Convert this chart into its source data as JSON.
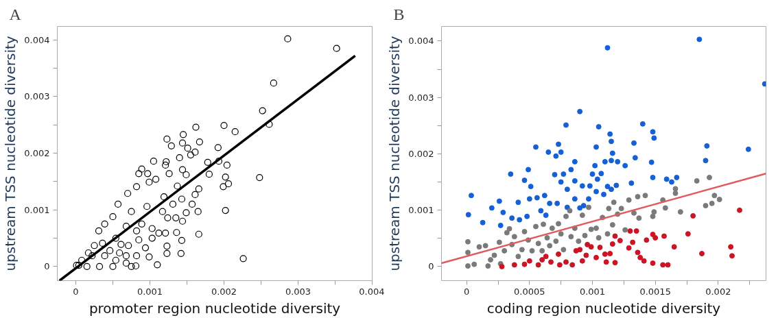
{
  "chart_data": [
    {
      "type": "scatter",
      "title": "A",
      "xlabel": "promoter region nucleotide diversity",
      "ylabel": "upstream TSS nucleotide diversity",
      "xlim": [
        -0.00025,
        0.004
      ],
      "ylim": [
        -0.00025,
        0.00424
      ],
      "xticks": [
        0,
        {
          "value": 0.0005,
          "label": null
        },
        0.001,
        {
          "value": 0.0015,
          "label": null
        },
        0.002,
        {
          "value": 0.0025,
          "label": null
        },
        0.003,
        {
          "value": 0.0035,
          "label": null
        },
        0.004
      ],
      "yticks": [
        0,
        {
          "value": 0.0005,
          "label": null
        },
        0.001,
        {
          "value": 0.0015,
          "label": null
        },
        0.002,
        {
          "value": 0.0025,
          "label": null
        },
        0.003,
        {
          "value": 0.0035,
          "label": null
        },
        0.004
      ],
      "series": [
        {
          "marker": "circle",
          "color": "#000000",
          "x": [
            0.00286,
            0.00352,
            0.00267,
            0.00252,
            0.00261,
            0.00162,
            0.002,
            0.00215,
            0.00145,
            0.00123,
            0.00129,
            0.00144,
            0.00167,
            0.00151,
            0.00192,
            0.00161,
            0.00155,
            0.00105,
            0.0014,
            0.00122,
            0.00178,
            0.00193,
            0.00204,
            0.00089,
            0.00085,
            0.00097,
            0.00121,
            0.00144,
            0.00149,
            0.00126,
            0.0018,
            0.00202,
            0.00248,
            0.00206,
            0.00199,
            0.00108,
            0.00099,
            0.00082,
            0.00166,
            0.00137,
            0.00161,
            0.0007,
            0.00119,
            0.00143,
            0.00131,
            0.00157,
            0.00202,
            0.00165,
            0.00149,
            0.00117,
            0.00135,
            0.00124,
            0.00144,
            0.00057,
            0.0005,
            0.00075,
            0.00096,
            0.00089,
            0.00103,
            0.00166,
            0.00112,
            0.00121,
            0.00136,
            0.00143,
            0.00039,
            0.00031,
            0.00068,
            0.00082,
            0.00054,
            0.00094,
            0.00123,
            0.00123,
            0.00142,
            0.00226,
            0.00099,
            0.0011,
            0.00081,
            0.00068,
            0.0005,
            0.00032,
            0.00015,
            4e-05,
            1e-05,
            8e-05,
            0.00017,
            0.00025,
            0.00022,
            0.00036,
            0.00039,
            0.00046,
            0.00059,
            0.00061,
            0.00071,
            0.00085,
            0.00103,
            0.00082,
            0.00054,
            0.00068,
            0.00075
          ],
          "values": [
            0.00402,
            0.00385,
            0.00324,
            0.00275,
            0.00251,
            0.00246,
            0.00249,
            0.00238,
            0.00233,
            0.00225,
            0.00213,
            0.00218,
            0.0022,
            0.00209,
            0.0021,
            0.00202,
            0.00197,
            0.00186,
            0.00192,
            0.00185,
            0.00184,
            0.00186,
            0.00179,
            0.00172,
            0.00164,
            0.00164,
            0.00179,
            0.00171,
            0.00162,
            0.00164,
            0.00163,
            0.00158,
            0.00157,
            0.00146,
            0.00141,
            0.00154,
            0.00149,
            0.00141,
            0.00137,
            0.00142,
            0.00127,
            0.00129,
            0.00123,
            0.00119,
            0.0011,
            0.0011,
            0.00099,
            0.00097,
            0.00095,
            0.00097,
            0.00086,
            0.00086,
            0.0008,
            0.0011,
            0.00088,
            0.00097,
            0.00106,
            0.00075,
            0.00067,
            0.00057,
            0.00059,
            0.00059,
            0.0006,
            0.00046,
            0.00075,
            0.00063,
            0.00071,
            0.00063,
            0.0005,
            0.00033,
            0.00036,
            0.00023,
            0.00023,
            0.00014,
            0.00017,
            3e-05,
            1e-05,
            6e-05,
            0.0,
            0.0,
            0.0,
            2e-05,
            2e-05,
            0.00011,
            0.00024,
            0.00037,
            0.00019,
            0.00041,
            0.00019,
            0.00028,
            0.00024,
            0.00039,
            0.00037,
            0.00047,
            0.0005,
            0.00019,
            0.00011,
            0.00019,
            0.0
          ]
        },
        {
          "type": "line",
          "marker": "none",
          "color": "#000000",
          "x": [
            -0.00022,
            0.00377
          ],
          "values": [
            -0.00025,
            0.00372
          ]
        }
      ]
    },
    {
      "type": "scatter",
      "title": "B",
      "xlabel": "coding region nucleotide diversity",
      "ylabel": "upstream TSS nucleotide diversity",
      "xlim": [
        -0.0002,
        0.00238
      ],
      "ylim": [
        -0.00025,
        0.00426
      ],
      "xticks": [
        0,
        {
          "value": 0.00025,
          "label": null
        },
        0.0005,
        {
          "value": 0.00075,
          "label": null
        },
        0.001,
        {
          "value": 0.00125,
          "label": null
        },
        0.0015,
        {
          "value": 0.00175,
          "label": null
        },
        0.002,
        {
          "value": 0.00225,
          "label": null
        }
      ],
      "yticks": [
        0,
        {
          "value": 0.0005,
          "label": null
        },
        0.001,
        {
          "value": 0.0015,
          "label": null
        },
        0.002,
        {
          "value": 0.0025,
          "label": null
        },
        0.003,
        {
          "value": 0.0035,
          "label": null
        },
        0.004
      ],
      "series": [
        {
          "marker": "circle",
          "color": "#1560d4",
          "x": [
            1.4e-05,
            3.7e-05,
            0.000128,
            0.0002,
            0.00026,
            0.00027,
            0.00029,
            0.00035,
            0.00036,
            0.00041,
            0.00042,
            0.00046,
            0.00049,
            0.00051,
            0.0005,
            0.00048,
            0.00055,
            0.00056,
            0.00059,
            0.00062,
            0.00063,
            0.00065,
            0.00066,
            0.0007,
            0.00071,
            0.00073,
            0.00075,
            0.00075,
            0.00072,
            0.00077,
            0.00079,
            0.0008,
            0.0008,
            0.00083,
            0.00086,
            0.00086,
            0.00086,
            0.0009,
            0.00092,
            0.0009,
            0.00093,
            0.00097,
            0.00098,
            0.001,
            0.00102,
            0.00103,
            0.00103,
            0.00105,
            0.00104,
            0.00107,
            0.00109,
            0.0011,
            0.00112,
            0.00112,
            0.00114,
            0.00115,
            0.00115,
            0.00115,
            0.00116,
            0.00119,
            0.0012,
            0.00126,
            0.00131,
            0.00133,
            0.00134,
            0.0014,
            0.00147,
            0.00148,
            0.00149,
            0.00148,
            0.00159,
            0.00163,
            0.00167,
            0.00185,
            0.0019,
            0.00191,
            0.00224,
            0.00237
          ],
          "values": [
            0.00092,
            0.00126,
            0.00078,
            0.00104,
            0.00116,
            0.00073,
            0.00096,
            0.00164,
            0.00086,
            0.00114,
            0.00083,
            0.00153,
            0.00172,
            0.00142,
            0.0012,
            0.00089,
            0.00212,
            0.00122,
            0.00099,
            0.00126,
            0.00091,
            0.00203,
            0.00112,
            0.00163,
            0.00196,
            0.00217,
            0.00203,
            0.0015,
            0.00112,
            0.00164,
            0.00251,
            0.00137,
            0.00105,
            0.00172,
            0.00186,
            0.00152,
            0.0012,
            0.00275,
            0.00143,
            0.00104,
            0.00108,
            0.0012,
            0.00143,
            0.00164,
            0.00179,
            0.00212,
            0.00133,
            0.00248,
            0.00155,
            0.00165,
            0.00128,
            0.00186,
            0.00388,
            0.00142,
            0.00235,
            0.00222,
            0.00137,
            0.00188,
            0.00201,
            0.00144,
            0.00186,
            0.00179,
            0.00148,
            0.00219,
            0.00193,
            0.00253,
            0.00185,
            0.00239,
            0.00228,
            0.00158,
            0.00155,
            0.0015,
            0.00158,
            0.00403,
            0.00188,
            0.00214,
            0.00208,
            0.00324
          ]
        },
        {
          "marker": "circle",
          "color": "#7a7a7a",
          "x": [
            1e-05,
            1e-05,
            1e-05,
            6e-05,
            0.0001,
            0.00015,
            0.00017,
            0.00019,
            0.00022,
            0.00026,
            0.00027,
            0.0003,
            0.00032,
            0.00034,
            0.00036,
            0.00038,
            0.00041,
            0.00044,
            0.00046,
            0.00049,
            0.00052,
            0.00055,
            0.00057,
            0.0006,
            0.00061,
            0.00064,
            0.00066,
            0.00068,
            0.00071,
            0.00073,
            0.00075,
            0.00077,
            0.00079,
            0.00082,
            0.00083,
            0.00086,
            0.00089,
            0.00092,
            0.00094,
            0.00097,
            0.00099,
            0.00103,
            0.00105,
            0.00108,
            0.00112,
            0.00113,
            0.00116,
            0.00117,
            0.0012,
            0.00123,
            0.00126,
            0.00129,
            0.00133,
            0.00136,
            0.00137,
            0.00142,
            0.00148,
            0.00149,
            0.00156,
            0.00158,
            0.00166,
            0.00166,
            0.0017,
            0.00183,
            0.0019,
            0.00193,
            0.00195,
            0.00197,
            0.00201
          ],
          "values": [
            0.00044,
            0.00025,
            1e-05,
            4e-05,
            0.00035,
            0.00037,
            1e-05,
            0.00012,
            0.0002,
            0.00043,
            5e-05,
            0.00028,
            0.0006,
            0.00067,
            0.00039,
            0.00053,
            0.00018,
            0.0003,
            0.00062,
            0.00047,
            0.00028,
            0.00071,
            0.00041,
            0.00028,
            0.00075,
            0.00051,
            0.00037,
            0.00068,
            0.00045,
            0.00076,
            0.00058,
            0.0003,
            0.00089,
            0.00099,
            0.00053,
            0.00068,
            0.00045,
            0.00091,
            0.00055,
            0.00105,
            0.00066,
            0.00068,
            0.00051,
            0.00087,
            0.00058,
            0.00103,
            0.00074,
            0.00114,
            0.00093,
            0.00103,
            0.00065,
            0.00118,
            0.00095,
            0.00124,
            0.00086,
            0.00126,
            0.00089,
            0.00097,
            0.00118,
            0.00104,
            0.00138,
            0.0013,
            0.00097,
            0.00152,
            0.00108,
            0.00158,
            0.00112,
            0.00126,
            0.00119
          ]
        },
        {
          "marker": "circle",
          "color": "#cc1424",
          "x": [
            0.00028,
            0.00038,
            0.00046,
            0.0005,
            0.00057,
            0.0006,
            0.00063,
            0.00067,
            0.00073,
            0.00074,
            0.00079,
            0.00084,
            0.00087,
            0.0009,
            0.00092,
            0.00095,
            0.00096,
            0.00099,
            0.00103,
            0.00106,
            0.0011,
            0.00111,
            0.00114,
            0.00116,
            0.00118,
            0.00118,
            0.00122,
            0.00129,
            0.0013,
            0.00132,
            0.00135,
            0.00136,
            0.00138,
            0.00141,
            0.00143,
            0.00148,
            0.00148,
            0.0015,
            0.00156,
            0.00157,
            0.0016,
            0.00165,
            0.00176,
            0.0018,
            0.00187,
            0.0021,
            0.00211,
            0.00217
          ],
          "values": [
            0.0,
            3e-05,
            4e-05,
            0.0001,
            3e-05,
            0.00012,
            0.00018,
            8e-05,
            0.00022,
            3e-05,
            8e-05,
            3e-05,
            0.00028,
            0.0003,
            0.0001,
            0.0002,
            0.00039,
            0.00035,
            0.00016,
            0.00034,
            0.00022,
            8e-05,
            0.00023,
            0.0004,
            0.00054,
            7e-05,
            0.00046,
            0.00033,
            0.00063,
            0.00043,
            0.00063,
            0.00025,
            0.00016,
            0.0001,
            0.00047,
            6e-05,
            0.00057,
            0.00051,
            3e-05,
            0.00054,
            3e-05,
            0.00035,
            0.00058,
            0.0009,
            0.00023,
            0.00035,
            0.00019,
            0.001
          ]
        },
        {
          "type": "line",
          "marker": "none",
          "color": "#e05a5f",
          "x": [
            -0.0002,
            0.00238
          ],
          "values": [
            6e-05,
            0.00165
          ]
        }
      ]
    }
  ]
}
